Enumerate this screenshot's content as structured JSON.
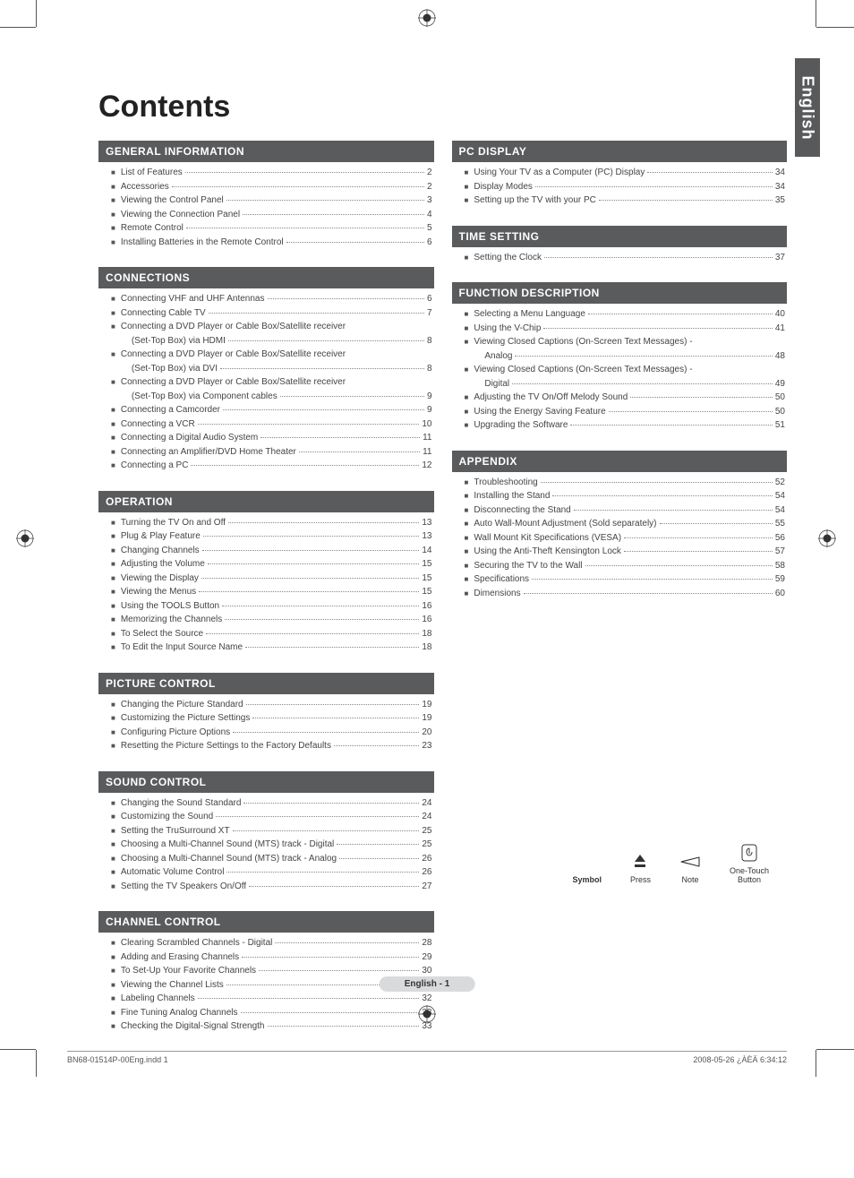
{
  "page_title": "Contents",
  "language_tab": "English",
  "footer_page": "English - 1",
  "print_footer_left": "BN68-01514P-00Eng.indd   1",
  "print_footer_right": "2008-05-26   ¿ÀÈÄ 6:34:12",
  "symbols": {
    "title": "Symbol",
    "items": [
      {
        "label": "Press"
      },
      {
        "label": "Note"
      },
      {
        "label": "One-Touch\nButton"
      }
    ]
  },
  "left_sections": [
    {
      "header": "GENERAL INFORMATION",
      "items": [
        {
          "label": "List of Features",
          "page": "2"
        },
        {
          "label": "Accessories",
          "page": "2"
        },
        {
          "label": "Viewing the Control Panel",
          "page": "3"
        },
        {
          "label": "Viewing the Connection Panel",
          "page": "4"
        },
        {
          "label": "Remote Control",
          "page": "5"
        },
        {
          "label": "Installing Batteries in the Remote Control",
          "page": "6"
        }
      ]
    },
    {
      "header": "CONNECTIONS",
      "items": [
        {
          "label": "Connecting VHF and UHF Antennas",
          "page": "6"
        },
        {
          "label": "Connecting Cable TV",
          "page": "7"
        },
        {
          "label": "Connecting a DVD Player or Cable Box/Satellite receiver",
          "page": ""
        },
        {
          "label": "(Set-Top Box) via HDMI",
          "page": "8",
          "sub": true
        },
        {
          "label": "Connecting a DVD Player or Cable Box/Satellite receiver",
          "page": ""
        },
        {
          "label": "(Set-Top Box) via DVI",
          "page": "8",
          "sub": true
        },
        {
          "label": "Connecting a DVD Player or Cable Box/Satellite receiver",
          "page": ""
        },
        {
          "label": "(Set-Top Box) via Component cables",
          "page": "9",
          "sub": true
        },
        {
          "label": "Connecting a Camcorder",
          "page": "9"
        },
        {
          "label": "Connecting a VCR",
          "page": "10"
        },
        {
          "label": "Connecting a Digital Audio System",
          "page": "11"
        },
        {
          "label": "Connecting an Amplifier/DVD Home Theater",
          "page": "11"
        },
        {
          "label": "Connecting a PC",
          "page": "12"
        }
      ]
    },
    {
      "header": "OPERATION",
      "items": [
        {
          "label": "Turning the TV On and Off",
          "page": "13"
        },
        {
          "label": "Plug & Play Feature",
          "page": "13"
        },
        {
          "label": "Changing Channels",
          "page": "14"
        },
        {
          "label": "Adjusting the Volume",
          "page": "15"
        },
        {
          "label": "Viewing the Display",
          "page": "15"
        },
        {
          "label": "Viewing the Menus",
          "page": "15"
        },
        {
          "label": "Using the TOOLS Button",
          "page": "16"
        },
        {
          "label": "Memorizing the Channels",
          "page": "16"
        },
        {
          "label": "To Select the Source",
          "page": "18"
        },
        {
          "label": "To Edit the Input Source Name",
          "page": "18"
        }
      ]
    },
    {
      "header": "PICTURE CONTROL",
      "items": [
        {
          "label": "Changing the Picture Standard",
          "page": "19"
        },
        {
          "label": "Customizing the Picture Settings",
          "page": "19"
        },
        {
          "label": "Configuring Picture Options",
          "page": "20"
        },
        {
          "label": "Resetting the Picture Settings to the Factory Defaults",
          "page": "23"
        }
      ]
    },
    {
      "header": "SOUND CONTROL",
      "items": [
        {
          "label": "Changing the Sound Standard",
          "page": "24"
        },
        {
          "label": "Customizing the Sound",
          "page": "24"
        },
        {
          "label": "Setting the TruSurround XT",
          "page": "25"
        },
        {
          "label": "Choosing a Multi-Channel Sound (MTS) track - Digital",
          "page": "25"
        },
        {
          "label": "Choosing a Multi-Channel Sound (MTS) track - Analog",
          "page": "26"
        },
        {
          "label": "Automatic Volume Control",
          "page": "26"
        },
        {
          "label": "Setting the TV Speakers On/Off",
          "page": "27"
        }
      ]
    },
    {
      "header": "CHANNEL CONTROL",
      "items": [
        {
          "label": "Clearing Scrambled Channels - Digital",
          "page": "28"
        },
        {
          "label": "Adding and Erasing Channels",
          "page": "29"
        },
        {
          "label": "To Set-Up Your Favorite Channels",
          "page": "30"
        },
        {
          "label": "Viewing the Channel Lists",
          "page": "31"
        },
        {
          "label": "Labeling Channels",
          "page": "32"
        },
        {
          "label": "Fine Tuning Analog Channels",
          "page": "33"
        },
        {
          "label": "Checking the Digital-Signal Strength",
          "page": "33"
        }
      ]
    }
  ],
  "right_sections": [
    {
      "header": "PC DISPLAY",
      "items": [
        {
          "label": "Using Your TV as a Computer (PC) Display",
          "page": "34"
        },
        {
          "label": "Display Modes",
          "page": "34"
        },
        {
          "label": "Setting up the TV with your PC",
          "page": "35"
        }
      ]
    },
    {
      "header": "TIME SETTING",
      "items": [
        {
          "label": "Setting the Clock",
          "page": "37"
        }
      ]
    },
    {
      "header": "FUNCTION DESCRIPTION",
      "items": [
        {
          "label": "Selecting a Menu Language",
          "page": "40"
        },
        {
          "label": "Using the V-Chip",
          "page": "41"
        },
        {
          "label": "Viewing Closed Captions (On-Screen Text Messages) -",
          "page": ""
        },
        {
          "label": "Analog",
          "page": "48",
          "sub": true
        },
        {
          "label": "Viewing Closed Captions (On-Screen Text Messages) -",
          "page": ""
        },
        {
          "label": "Digital",
          "page": "49",
          "sub": true
        },
        {
          "label": "Adjusting the TV On/Off Melody Sound",
          "page": "50"
        },
        {
          "label": "Using the Energy Saving Feature",
          "page": "50"
        },
        {
          "label": "Upgrading the Software",
          "page": "51"
        }
      ]
    },
    {
      "header": "APPENDIX",
      "items": [
        {
          "label": "Troubleshooting",
          "page": "52"
        },
        {
          "label": "Installing the Stand",
          "page": "54"
        },
        {
          "label": "Disconnecting the Stand",
          "page": "54"
        },
        {
          "label": "Auto Wall-Mount Adjustment (Sold separately)",
          "page": "55"
        },
        {
          "label": "Wall Mount Kit Specifications (VESA)",
          "page": "56"
        },
        {
          "label": "Using the Anti-Theft Kensington Lock",
          "page": "57"
        },
        {
          "label": "Securing the TV to the Wall",
          "page": "58"
        },
        {
          "label": "Specifications",
          "page": "59"
        },
        {
          "label": "Dimensions",
          "page": "60"
        }
      ]
    }
  ]
}
